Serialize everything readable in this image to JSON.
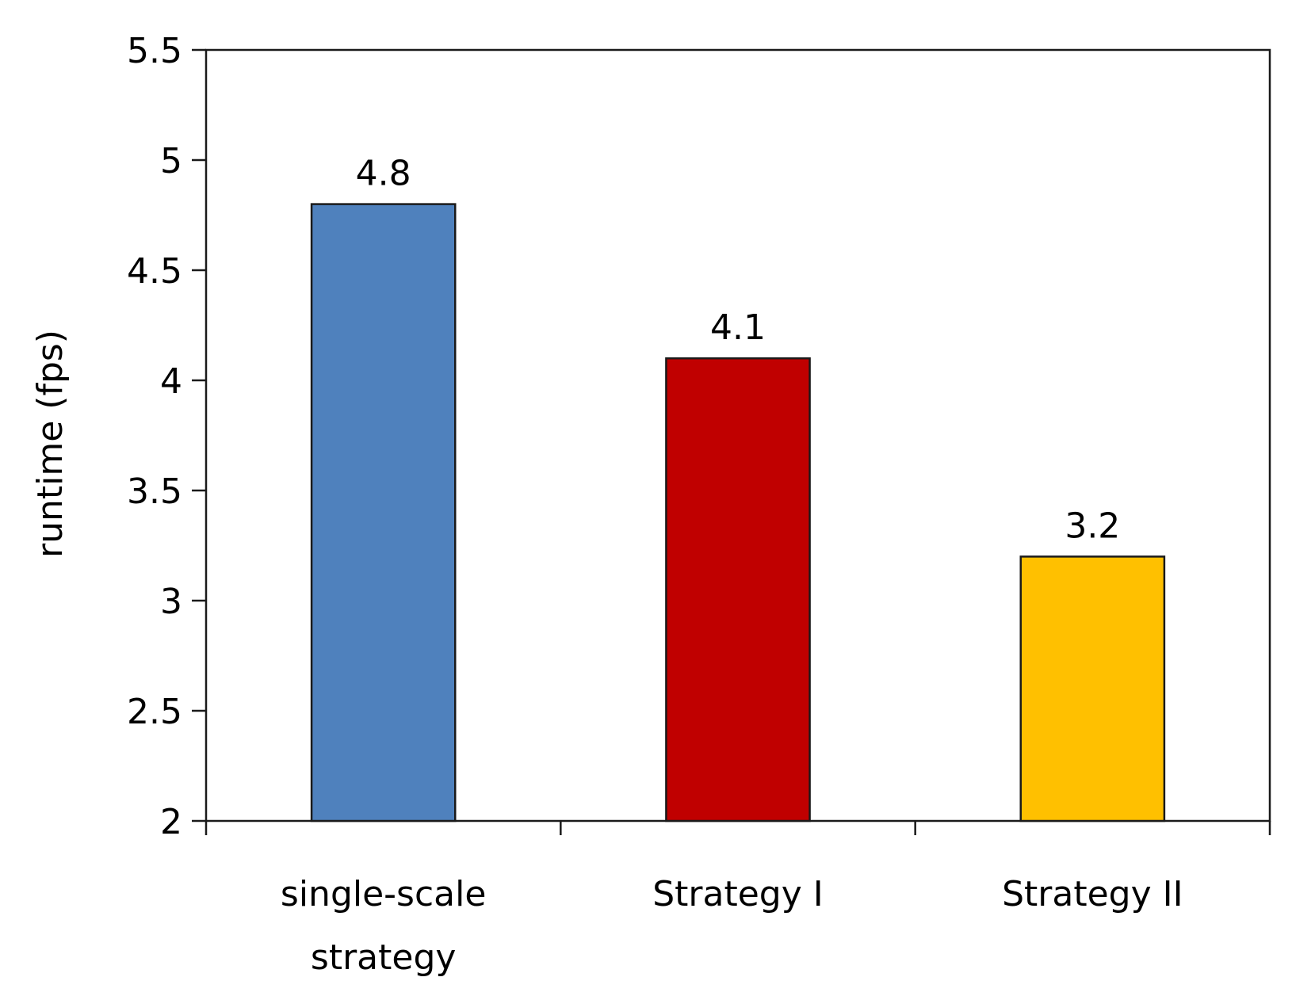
{
  "chart_data": {
    "type": "bar",
    "title": "",
    "xlabel": "",
    "ylabel": "runtime (fps)",
    "ylim": [
      2,
      5.5
    ],
    "yticks": [
      "2",
      "2.5",
      "3",
      "3.5",
      "4",
      "4.5",
      "5",
      "5.5"
    ],
    "grid": false,
    "legend": "none",
    "categories": [
      [
        "single-scale",
        "strategy"
      ],
      [
        "Strategy I"
      ],
      [
        "Strategy II"
      ]
    ],
    "values": [
      4.8,
      4.1,
      3.2
    ],
    "data_labels": [
      "4.8",
      "4.1",
      "3.2"
    ],
    "colors": [
      "#4f81bd",
      "#c00000",
      "#ffc000"
    ]
  }
}
